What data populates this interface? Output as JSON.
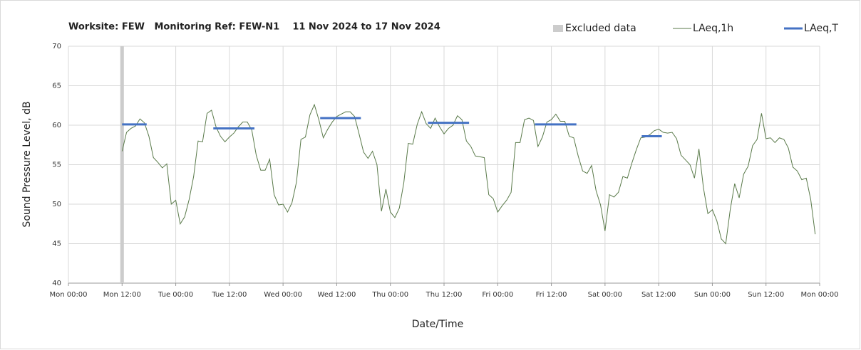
{
  "chart_data": {
    "type": "line",
    "title": "Worksite: FEW   Monitoring Ref: FEW-N1    11 Nov 2024 to 17 Nov 2024",
    "x_label": "Date/Time",
    "y_label": "Sound Pressure Level, dB",
    "xlim": [
      0,
      168
    ],
    "ylim": [
      40,
      70
    ],
    "yticks": [
      40,
      45,
      50,
      55,
      60,
      65,
      70
    ],
    "xticks": [
      {
        "value": 0,
        "label": "Mon 00:00"
      },
      {
        "value": 12,
        "label": "Mon 12:00"
      },
      {
        "value": 24,
        "label": "Tue 00:00"
      },
      {
        "value": 36,
        "label": "Tue 12:00"
      },
      {
        "value": 48,
        "label": "Wed 00:00"
      },
      {
        "value": 60,
        "label": "Wed 12:00"
      },
      {
        "value": 72,
        "label": "Thu 00:00"
      },
      {
        "value": 84,
        "label": "Thu 12:00"
      },
      {
        "value": 96,
        "label": "Fri 00:00"
      },
      {
        "value": 108,
        "label": "Fri 12:00"
      },
      {
        "value": 120,
        "label": "Sat 00:00"
      },
      {
        "value": 132,
        "label": "Sat 12:00"
      },
      {
        "value": 144,
        "label": "Sun 00:00"
      },
      {
        "value": 156,
        "label": "Sun 12:00"
      },
      {
        "value": 168,
        "label": "Mon 00:00"
      }
    ],
    "grid": true,
    "legend": "top-right",
    "excluded": {
      "name": "Excluded data",
      "color": "#cccccc",
      "x": [
        11.6,
        12.4
      ]
    },
    "series": [
      {
        "name": "LAeq,1h",
        "color": "#5a7a4a",
        "x": [
          12,
          13,
          14,
          15,
          16,
          17,
          18,
          19,
          20,
          21,
          22,
          23,
          24,
          25,
          26,
          27,
          28,
          29,
          30,
          31,
          32,
          33,
          34,
          35,
          36,
          37,
          38,
          39,
          40,
          41,
          42,
          43,
          44,
          45,
          46,
          47,
          48,
          49,
          50,
          51,
          52,
          53,
          54,
          55,
          56,
          57,
          58,
          59,
          60,
          61,
          62,
          63,
          64,
          65,
          66,
          67,
          68,
          69,
          70,
          71,
          72,
          73,
          74,
          75,
          76,
          77,
          78,
          79,
          80,
          81,
          82,
          83,
          84,
          85,
          86,
          87,
          88,
          89,
          90,
          91,
          92,
          93,
          94,
          95,
          96,
          97,
          98,
          99,
          100,
          101,
          102,
          103,
          104,
          105,
          106,
          107,
          108,
          109,
          110,
          111,
          112,
          113,
          114,
          115,
          116,
          117,
          118,
          119,
          120,
          121,
          122,
          123,
          124,
          125,
          126,
          127,
          128,
          129,
          130,
          131,
          132,
          133,
          134,
          135,
          136,
          137,
          138,
          139,
          140,
          141,
          142,
          143,
          144,
          145,
          146,
          147,
          148,
          149,
          150,
          151,
          152,
          153,
          154,
          155,
          156,
          157,
          158,
          159,
          160,
          161,
          162,
          163,
          164,
          165,
          166,
          167
        ],
        "values": [
          56.7,
          59.1,
          59.6,
          59.9,
          60.8,
          60.3,
          58.6,
          55.9,
          55.3,
          54.6,
          55.1,
          50.0,
          50.5,
          47.5,
          48.4,
          50.6,
          53.5,
          58.0,
          57.9,
          61.5,
          61.9,
          59.8,
          58.6,
          57.9,
          58.5,
          59.0,
          59.8,
          60.4,
          60.4,
          59.4,
          56.2,
          54.3,
          54.3,
          55.7,
          51.2,
          49.9,
          50.0,
          49.0,
          50.2,
          52.8,
          58.2,
          58.5,
          61.3,
          62.6,
          60.7,
          58.4,
          59.5,
          60.4,
          61.1,
          61.4,
          61.7,
          61.7,
          61.1,
          58.9,
          56.6,
          55.8,
          56.7,
          55.0,
          49.1,
          51.9,
          49.0,
          48.3,
          49.5,
          52.7,
          57.7,
          57.6,
          60.1,
          61.7,
          60.2,
          59.6,
          60.9,
          59.8,
          58.9,
          59.6,
          60.0,
          61.2,
          60.7,
          58.0,
          57.3,
          56.1,
          56.0,
          55.9,
          51.2,
          50.7,
          49.0,
          49.8,
          50.5,
          51.5,
          57.8,
          57.8,
          60.7,
          60.9,
          60.6,
          57.3,
          58.5,
          60.4,
          60.7,
          61.4,
          60.5,
          60.5,
          58.6,
          58.4,
          56.1,
          54.2,
          53.9,
          54.9,
          51.7,
          49.9,
          46.6,
          51.2,
          50.9,
          51.5,
          53.5,
          53.3,
          55.2,
          56.9,
          58.4,
          58.5,
          58.8,
          59.3,
          59.5,
          59.1,
          59.0,
          59.1,
          58.3,
          56.2,
          55.6,
          55.0,
          53.3,
          57.0,
          52.1,
          48.8,
          49.3,
          47.9,
          45.6,
          45.0,
          49.3,
          52.6,
          50.8,
          53.8,
          54.8,
          57.4,
          58.2,
          61.5,
          58.3,
          58.4,
          57.8,
          58.4,
          58.2,
          57.1,
          54.7,
          54.2,
          53.1,
          53.3,
          50.6,
          46.2
        ],
        "width": 1
      },
      {
        "name": "LAeq,T",
        "color": "#4472c4",
        "x": [
          12,
          17.5,
          24,
          32.4,
          41.6,
          48,
          56.3,
          65.4,
          72,
          80.4,
          89.6,
          96,
          104.3,
          113.6,
          120,
          128.2,
          132.7
        ],
        "values": [
          60.1,
          60.1,
          null,
          59.6,
          59.6,
          null,
          60.9,
          60.9,
          null,
          60.3,
          60.3,
          null,
          60.1,
          60.1,
          null,
          58.6,
          58.6
        ],
        "width": 3
      }
    ]
  }
}
